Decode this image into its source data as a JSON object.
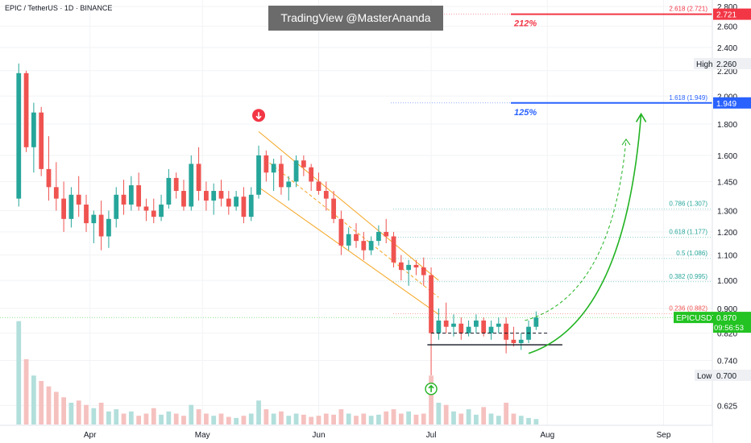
{
  "header": {
    "symbol_title": "EPIC / TetherUS · 1D · BINANCE",
    "watermark": "TradingView @MasterAnanda"
  },
  "colors": {
    "up": "#26a69a",
    "down": "#ef5350",
    "fib_line": "#26a69a",
    "fib_text": "#26a69a",
    "target_red": "#f23645",
    "target_blue": "#2962ff",
    "channel": "#f5a623",
    "arrow_green": "#22b322",
    "price_label_bg": "#22c322",
    "volume_up": "#b2dfdb",
    "volume_down": "#f5c1bf",
    "axis_text": "#131722"
  },
  "chart_data": {
    "type": "candlestick",
    "y_axis": {
      "scale": "log",
      "ylim": [
        0.58,
        2.87
      ],
      "ticks": [
        "2.800",
        "2.600",
        "2.400",
        "2.200",
        "2.000",
        "1.800",
        "1.600",
        "1.450",
        "1.300",
        "1.200",
        "1.100",
        "1.000",
        "0.900",
        "0.820",
        "0.740",
        "0.625"
      ]
    },
    "x_axis": {
      "range": [
        "2025-03-08",
        "2025-09-14"
      ],
      "ticks": [
        {
          "label": "Apr",
          "date": "2025-04-01"
        },
        {
          "label": "May",
          "date": "2025-05-01"
        },
        {
          "label": "Jun",
          "date": "2025-06-01"
        },
        {
          "label": "Jul",
          "date": "2025-07-01"
        },
        {
          "label": "Aug",
          "date": "2025-08-01"
        },
        {
          "label": "Sep",
          "date": "2025-09-01"
        }
      ]
    },
    "candles": [
      {
        "date": "2025-03-13",
        "o": 1.36,
        "h": 2.26,
        "l": 1.32,
        "c": 2.18
      },
      {
        "date": "2025-03-15",
        "o": 2.18,
        "h": 2.2,
        "l": 1.62,
        "c": 1.65
      },
      {
        "date": "2025-03-17",
        "o": 1.65,
        "h": 1.95,
        "l": 1.5,
        "c": 1.88
      },
      {
        "date": "2025-03-19",
        "o": 1.88,
        "h": 1.92,
        "l": 1.48,
        "c": 1.52
      },
      {
        "date": "2025-03-21",
        "o": 1.52,
        "h": 1.72,
        "l": 1.35,
        "c": 1.42
      },
      {
        "date": "2025-03-23",
        "o": 1.42,
        "h": 1.56,
        "l": 1.3,
        "c": 1.36
      },
      {
        "date": "2025-03-25",
        "o": 1.36,
        "h": 1.45,
        "l": 1.2,
        "c": 1.26
      },
      {
        "date": "2025-03-27",
        "o": 1.26,
        "h": 1.42,
        "l": 1.22,
        "c": 1.38
      },
      {
        "date": "2025-03-29",
        "o": 1.38,
        "h": 1.48,
        "l": 1.27,
        "c": 1.33
      },
      {
        "date": "2025-03-31",
        "o": 1.33,
        "h": 1.38,
        "l": 1.2,
        "c": 1.24
      },
      {
        "date": "2025-04-02",
        "o": 1.24,
        "h": 1.3,
        "l": 1.15,
        "c": 1.28
      },
      {
        "date": "2025-04-04",
        "o": 1.28,
        "h": 1.35,
        "l": 1.12,
        "c": 1.18
      },
      {
        "date": "2025-04-06",
        "o": 1.18,
        "h": 1.3,
        "l": 1.13,
        "c": 1.26
      },
      {
        "date": "2025-04-08",
        "o": 1.26,
        "h": 1.42,
        "l": 1.22,
        "c": 1.38
      },
      {
        "date": "2025-04-10",
        "o": 1.38,
        "h": 1.46,
        "l": 1.28,
        "c": 1.33
      },
      {
        "date": "2025-04-12",
        "o": 1.33,
        "h": 1.48,
        "l": 1.3,
        "c": 1.43
      },
      {
        "date": "2025-04-14",
        "o": 1.43,
        "h": 1.5,
        "l": 1.3,
        "c": 1.32
      },
      {
        "date": "2025-04-16",
        "o": 1.32,
        "h": 1.36,
        "l": 1.25,
        "c": 1.3
      },
      {
        "date": "2025-04-18",
        "o": 1.3,
        "h": 1.36,
        "l": 1.24,
        "c": 1.27
      },
      {
        "date": "2025-04-20",
        "o": 1.27,
        "h": 1.38,
        "l": 1.25,
        "c": 1.33
      },
      {
        "date": "2025-04-22",
        "o": 1.33,
        "h": 1.52,
        "l": 1.31,
        "c": 1.47
      },
      {
        "date": "2025-04-24",
        "o": 1.47,
        "h": 1.5,
        "l": 1.36,
        "c": 1.4
      },
      {
        "date": "2025-04-26",
        "o": 1.4,
        "h": 1.46,
        "l": 1.3,
        "c": 1.32
      },
      {
        "date": "2025-04-28",
        "o": 1.32,
        "h": 1.6,
        "l": 1.3,
        "c": 1.55
      },
      {
        "date": "2025-04-30",
        "o": 1.55,
        "h": 1.65,
        "l": 1.35,
        "c": 1.4
      },
      {
        "date": "2025-05-02",
        "o": 1.4,
        "h": 1.45,
        "l": 1.3,
        "c": 1.35
      },
      {
        "date": "2025-05-04",
        "o": 1.35,
        "h": 1.44,
        "l": 1.28,
        "c": 1.4
      },
      {
        "date": "2025-05-06",
        "o": 1.4,
        "h": 1.46,
        "l": 1.32,
        "c": 1.36
      },
      {
        "date": "2025-05-08",
        "o": 1.36,
        "h": 1.4,
        "l": 1.28,
        "c": 1.32
      },
      {
        "date": "2025-05-10",
        "o": 1.32,
        "h": 1.4,
        "l": 1.3,
        "c": 1.37
      },
      {
        "date": "2025-05-12",
        "o": 1.37,
        "h": 1.42,
        "l": 1.24,
        "c": 1.27
      },
      {
        "date": "2025-05-14",
        "o": 1.27,
        "h": 1.42,
        "l": 1.25,
        "c": 1.38
      },
      {
        "date": "2025-05-16",
        "o": 1.38,
        "h": 1.66,
        "l": 1.36,
        "c": 1.6
      },
      {
        "date": "2025-05-18",
        "o": 1.6,
        "h": 1.63,
        "l": 1.45,
        "c": 1.5
      },
      {
        "date": "2025-05-20",
        "o": 1.5,
        "h": 1.58,
        "l": 1.4,
        "c": 1.55
      },
      {
        "date": "2025-05-22",
        "o": 1.55,
        "h": 1.6,
        "l": 1.38,
        "c": 1.42
      },
      {
        "date": "2025-05-24",
        "o": 1.42,
        "h": 1.48,
        "l": 1.35,
        "c": 1.45
      },
      {
        "date": "2025-05-26",
        "o": 1.45,
        "h": 1.6,
        "l": 1.42,
        "c": 1.57
      },
      {
        "date": "2025-05-28",
        "o": 1.57,
        "h": 1.6,
        "l": 1.48,
        "c": 1.53
      },
      {
        "date": "2025-05-30",
        "o": 1.53,
        "h": 1.55,
        "l": 1.4,
        "c": 1.45
      },
      {
        "date": "2025-06-01",
        "o": 1.45,
        "h": 1.5,
        "l": 1.38,
        "c": 1.4
      },
      {
        "date": "2025-06-03",
        "o": 1.4,
        "h": 1.45,
        "l": 1.3,
        "c": 1.36
      },
      {
        "date": "2025-06-05",
        "o": 1.36,
        "h": 1.4,
        "l": 1.24,
        "c": 1.26
      },
      {
        "date": "2025-06-07",
        "o": 1.26,
        "h": 1.3,
        "l": 1.1,
        "c": 1.14
      },
      {
        "date": "2025-06-09",
        "o": 1.14,
        "h": 1.22,
        "l": 1.12,
        "c": 1.19
      },
      {
        "date": "2025-06-11",
        "o": 1.19,
        "h": 1.24,
        "l": 1.13,
        "c": 1.16
      },
      {
        "date": "2025-06-13",
        "o": 1.16,
        "h": 1.2,
        "l": 1.08,
        "c": 1.12
      },
      {
        "date": "2025-06-15",
        "o": 1.12,
        "h": 1.18,
        "l": 1.1,
        "c": 1.16
      },
      {
        "date": "2025-06-17",
        "o": 1.16,
        "h": 1.23,
        "l": 1.14,
        "c": 1.2
      },
      {
        "date": "2025-06-19",
        "o": 1.2,
        "h": 1.26,
        "l": 1.15,
        "c": 1.18
      },
      {
        "date": "2025-06-21",
        "o": 1.18,
        "h": 1.2,
        "l": 1.05,
        "c": 1.07
      },
      {
        "date": "2025-06-23",
        "o": 1.07,
        "h": 1.1,
        "l": 1.0,
        "c": 1.04
      },
      {
        "date": "2025-06-25",
        "o": 1.04,
        "h": 1.08,
        "l": 0.98,
        "c": 1.06
      },
      {
        "date": "2025-06-27",
        "o": 1.06,
        "h": 1.08,
        "l": 1.02,
        "c": 1.05
      },
      {
        "date": "2025-06-29",
        "o": 1.05,
        "h": 1.09,
        "l": 0.98,
        "c": 1.02
      },
      {
        "date": "2025-07-01",
        "o": 1.02,
        "h": 1.05,
        "l": 0.7,
        "c": 0.82
      },
      {
        "date": "2025-07-03",
        "o": 0.82,
        "h": 0.9,
        "l": 0.8,
        "c": 0.86
      },
      {
        "date": "2025-07-05",
        "o": 0.86,
        "h": 0.92,
        "l": 0.82,
        "c": 0.84
      },
      {
        "date": "2025-07-07",
        "o": 0.84,
        "h": 0.88,
        "l": 0.81,
        "c": 0.85
      },
      {
        "date": "2025-07-09",
        "o": 0.85,
        "h": 0.87,
        "l": 0.8,
        "c": 0.82
      },
      {
        "date": "2025-07-11",
        "o": 0.82,
        "h": 0.86,
        "l": 0.81,
        "c": 0.84
      },
      {
        "date": "2025-07-13",
        "o": 0.84,
        "h": 0.88,
        "l": 0.82,
        "c": 0.86
      },
      {
        "date": "2025-07-15",
        "o": 0.86,
        "h": 0.87,
        "l": 0.81,
        "c": 0.82
      },
      {
        "date": "2025-07-17",
        "o": 0.82,
        "h": 0.86,
        "l": 0.8,
        "c": 0.84
      },
      {
        "date": "2025-07-19",
        "o": 0.84,
        "h": 0.87,
        "l": 0.82,
        "c": 0.85
      },
      {
        "date": "2025-07-21",
        "o": 0.85,
        "h": 0.87,
        "l": 0.76,
        "c": 0.8
      },
      {
        "date": "2025-07-23",
        "o": 0.8,
        "h": 0.84,
        "l": 0.78,
        "c": 0.79
      },
      {
        "date": "2025-07-25",
        "o": 0.79,
        "h": 0.82,
        "l": 0.77,
        "c": 0.8
      },
      {
        "date": "2025-07-27",
        "o": 0.8,
        "h": 0.86,
        "l": 0.79,
        "c": 0.84
      },
      {
        "date": "2025-07-29",
        "o": 0.84,
        "h": 0.89,
        "l": 0.83,
        "c": 0.87
      }
    ],
    "volume": [
      0.95,
      0.6,
      0.45,
      0.4,
      0.35,
      0.3,
      0.25,
      0.2,
      0.22,
      0.18,
      0.15,
      0.2,
      0.12,
      0.14,
      0.1,
      0.12,
      0.08,
      0.1,
      0.15,
      0.09,
      0.12,
      0.1,
      0.08,
      0.18,
      0.14,
      0.1,
      0.08,
      0.1,
      0.07,
      0.06,
      0.08,
      0.1,
      0.22,
      0.14,
      0.1,
      0.12,
      0.08,
      0.1,
      0.09,
      0.07,
      0.08,
      0.1,
      0.09,
      0.14,
      0.1,
      0.08,
      0.1,
      0.08,
      0.09,
      0.12,
      0.14,
      0.1,
      0.12,
      0.09,
      0.1,
      0.45,
      0.2,
      0.18,
      0.12,
      0.1,
      0.14,
      0.09,
      0.16,
      0.1,
      0.08,
      0.2,
      0.1,
      0.08,
      0.06,
      0.05
    ],
    "fib_levels": [
      {
        "label": "0.236 (0.882)",
        "value": 0.882
      },
      {
        "label": "0.382 (0.995)",
        "value": 0.995
      },
      {
        "label": "0.5 (1.086)",
        "value": 1.086
      },
      {
        "label": "0.618 (1.177)",
        "value": 1.177
      },
      {
        "label": "0.786 (1.307)",
        "value": 1.307
      },
      {
        "label": "1.618 (1.949)",
        "value": 1.949
      },
      {
        "label": "2.618 (2.721)",
        "value": 2.721
      }
    ],
    "targets": [
      {
        "label": "212%",
        "value": 2.721,
        "price_tag": "2.721",
        "color": "red"
      },
      {
        "label": "125%",
        "value": 1.949,
        "price_tag": "1.949",
        "color": "blue"
      }
    ],
    "high": {
      "label": "High",
      "value": "2.260"
    },
    "low": {
      "label": "Low",
      "value": "0.700"
    },
    "current": {
      "symbol": "EPICUSDT",
      "price": "0.870",
      "countdown": "09:56:53"
    },
    "annotations": {
      "sell_marker_date": "2025-05-16",
      "buy_marker_date": "2025-07-01",
      "support_level": 0.785,
      "range_top": 0.82
    }
  }
}
